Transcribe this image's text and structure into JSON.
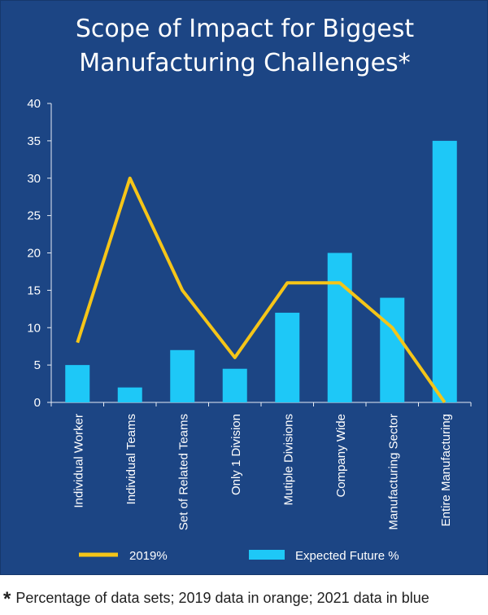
{
  "chart_data": {
    "type": "bar",
    "title": "Scope of Impact for Biggest Manufacturing Challenges*",
    "title_lines": [
      "Scope of Impact for Biggest",
      "Manufacturing Challenges*"
    ],
    "categories": [
      "Individual Worker",
      "Individual Teams",
      "Set of Related Teams",
      "Only 1 Division",
      "Mutiple Divisions",
      "Company Wide",
      "Manufacturing Sector",
      "Entire Manufacturing"
    ],
    "series": [
      {
        "name": "2019%",
        "kind": "line",
        "color": "#f5c518",
        "values": [
          8,
          30,
          15,
          6,
          16,
          16,
          10,
          0
        ]
      },
      {
        "name": "Expected Future %",
        "kind": "bar",
        "color": "#1ec8f7",
        "values": [
          5,
          2,
          7,
          4.5,
          12,
          20,
          14,
          35
        ]
      }
    ],
    "y_ticks": [
      "0",
      "5",
      "10",
      "15",
      "20",
      "25",
      "30",
      "35",
      "40"
    ],
    "ylim": [
      0,
      40
    ],
    "grid": false,
    "legend_position": "bottom",
    "background_color": "#1c4584",
    "text_color": "#ffffff"
  },
  "footnote": {
    "marker": "*",
    "text": "Percentage of data sets; 2019 data in orange; 2021 data in blue"
  }
}
